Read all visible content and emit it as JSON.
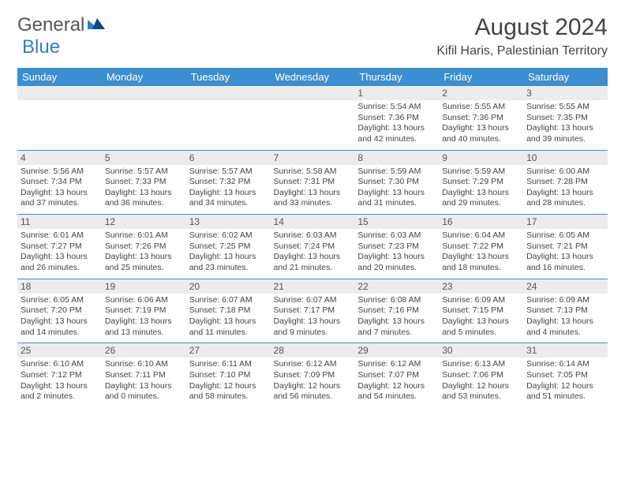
{
  "logo": {
    "text_general": "General",
    "text_blue": "Blue"
  },
  "title": "August 2024",
  "location": "Kifil Haris, Palestinian Territory",
  "colors": {
    "header_bg": "#3b8fd0",
    "header_text": "#ffffff",
    "daynum_bg": "#ececec",
    "text": "#444444",
    "row_border": "#3b8fd0"
  },
  "fonts": {
    "title_size_pt": 30,
    "location_size_pt": 16,
    "weekday_size_pt": 13,
    "daynum_size_pt": 12,
    "body_size_pt": 10.5
  },
  "weekdays": [
    "Sunday",
    "Monday",
    "Tuesday",
    "Wednesday",
    "Thursday",
    "Friday",
    "Saturday"
  ],
  "weeks": [
    [
      null,
      null,
      null,
      null,
      {
        "n": "1",
        "sunrise": "5:54 AM",
        "sunset": "7:36 PM",
        "daylight": "13 hours and 42 minutes."
      },
      {
        "n": "2",
        "sunrise": "5:55 AM",
        "sunset": "7:36 PM",
        "daylight": "13 hours and 40 minutes."
      },
      {
        "n": "3",
        "sunrise": "5:55 AM",
        "sunset": "7:35 PM",
        "daylight": "13 hours and 39 minutes."
      }
    ],
    [
      {
        "n": "4",
        "sunrise": "5:56 AM",
        "sunset": "7:34 PM",
        "daylight": "13 hours and 37 minutes."
      },
      {
        "n": "5",
        "sunrise": "5:57 AM",
        "sunset": "7:33 PM",
        "daylight": "13 hours and 36 minutes."
      },
      {
        "n": "6",
        "sunrise": "5:57 AM",
        "sunset": "7:32 PM",
        "daylight": "13 hours and 34 minutes."
      },
      {
        "n": "7",
        "sunrise": "5:58 AM",
        "sunset": "7:31 PM",
        "daylight": "13 hours and 33 minutes."
      },
      {
        "n": "8",
        "sunrise": "5:59 AM",
        "sunset": "7:30 PM",
        "daylight": "13 hours and 31 minutes."
      },
      {
        "n": "9",
        "sunrise": "5:59 AM",
        "sunset": "7:29 PM",
        "daylight": "13 hours and 29 minutes."
      },
      {
        "n": "10",
        "sunrise": "6:00 AM",
        "sunset": "7:28 PM",
        "daylight": "13 hours and 28 minutes."
      }
    ],
    [
      {
        "n": "11",
        "sunrise": "6:01 AM",
        "sunset": "7:27 PM",
        "daylight": "13 hours and 26 minutes."
      },
      {
        "n": "12",
        "sunrise": "6:01 AM",
        "sunset": "7:26 PM",
        "daylight": "13 hours and 25 minutes."
      },
      {
        "n": "13",
        "sunrise": "6:02 AM",
        "sunset": "7:25 PM",
        "daylight": "13 hours and 23 minutes."
      },
      {
        "n": "14",
        "sunrise": "6:03 AM",
        "sunset": "7:24 PM",
        "daylight": "13 hours and 21 minutes."
      },
      {
        "n": "15",
        "sunrise": "6:03 AM",
        "sunset": "7:23 PM",
        "daylight": "13 hours and 20 minutes."
      },
      {
        "n": "16",
        "sunrise": "6:04 AM",
        "sunset": "7:22 PM",
        "daylight": "13 hours and 18 minutes."
      },
      {
        "n": "17",
        "sunrise": "6:05 AM",
        "sunset": "7:21 PM",
        "daylight": "13 hours and 16 minutes."
      }
    ],
    [
      {
        "n": "18",
        "sunrise": "6:05 AM",
        "sunset": "7:20 PM",
        "daylight": "13 hours and 14 minutes."
      },
      {
        "n": "19",
        "sunrise": "6:06 AM",
        "sunset": "7:19 PM",
        "daylight": "13 hours and 13 minutes."
      },
      {
        "n": "20",
        "sunrise": "6:07 AM",
        "sunset": "7:18 PM",
        "daylight": "13 hours and 11 minutes."
      },
      {
        "n": "21",
        "sunrise": "6:07 AM",
        "sunset": "7:17 PM",
        "daylight": "13 hours and 9 minutes."
      },
      {
        "n": "22",
        "sunrise": "6:08 AM",
        "sunset": "7:16 PM",
        "daylight": "13 hours and 7 minutes."
      },
      {
        "n": "23",
        "sunrise": "6:09 AM",
        "sunset": "7:15 PM",
        "daylight": "13 hours and 5 minutes."
      },
      {
        "n": "24",
        "sunrise": "6:09 AM",
        "sunset": "7:13 PM",
        "daylight": "13 hours and 4 minutes."
      }
    ],
    [
      {
        "n": "25",
        "sunrise": "6:10 AM",
        "sunset": "7:12 PM",
        "daylight": "13 hours and 2 minutes."
      },
      {
        "n": "26",
        "sunrise": "6:10 AM",
        "sunset": "7:11 PM",
        "daylight": "13 hours and 0 minutes."
      },
      {
        "n": "27",
        "sunrise": "6:11 AM",
        "sunset": "7:10 PM",
        "daylight": "12 hours and 58 minutes."
      },
      {
        "n": "28",
        "sunrise": "6:12 AM",
        "sunset": "7:09 PM",
        "daylight": "12 hours and 56 minutes."
      },
      {
        "n": "29",
        "sunrise": "6:12 AM",
        "sunset": "7:07 PM",
        "daylight": "12 hours and 54 minutes."
      },
      {
        "n": "30",
        "sunrise": "6:13 AM",
        "sunset": "7:06 PM",
        "daylight": "12 hours and 53 minutes."
      },
      {
        "n": "31",
        "sunrise": "6:14 AM",
        "sunset": "7:05 PM",
        "daylight": "12 hours and 51 minutes."
      }
    ]
  ],
  "labels": {
    "sunrise": "Sunrise:",
    "sunset": "Sunset:",
    "daylight": "Daylight:"
  }
}
